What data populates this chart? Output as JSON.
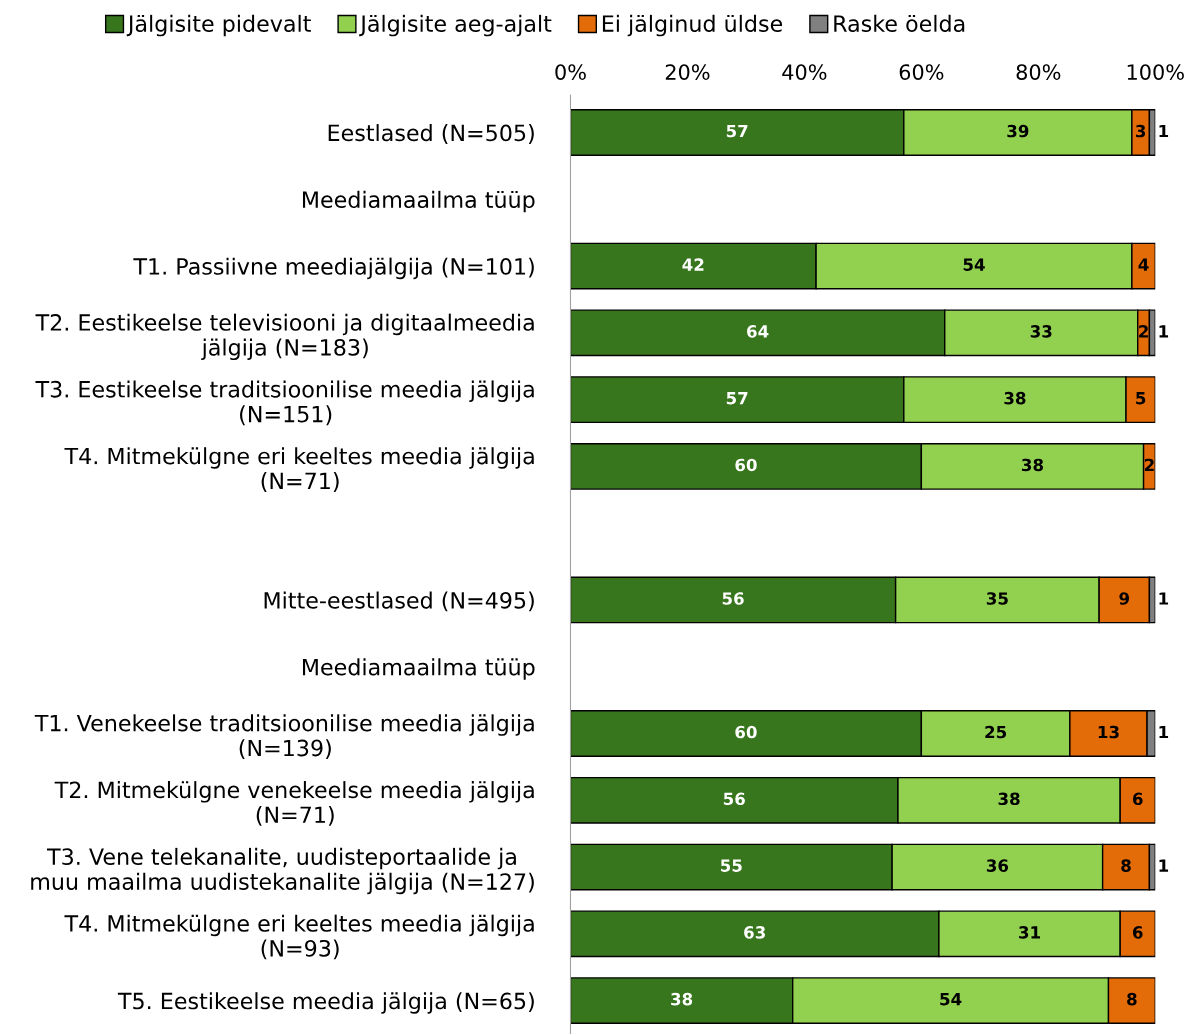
{
  "chart_data": {
    "type": "bar",
    "orientation": "horizontal",
    "stacked": true,
    "legend": "top",
    "grid": false,
    "categories": [
      "Eestlased (N=505)",
      "Meediamaailma tüüp",
      "T1. Passiivne meediajälgija (N=101)",
      "T2. Eestikeelse televisiooni ja digitaalmeedia\njälgija (N=183)",
      "T3. Eestikeelse traditsioonilise meedia jälgija\n(N=151)",
      "T4. Mitmekülgne eri keeltes meedia jälgija\n(N=71)",
      null,
      "Mitte-eestlased (N=495)",
      "Meediamaailma tüüp",
      "T1. Venekeelse traditsioonilise meedia jälgija\n(N=139)",
      "T2. Mitmekülgne venekeelse meedia jälgija\n(N=71)",
      "T3. Vene telekanalite, uudisteportaalide ja\nmuu maailma uudistekanalite jälgija (N=127)",
      "T4. Mitmekülgne eri keeltes meedia jälgija\n(N=93)",
      "T5. Eestikeelse meedia jälgija (N=65)"
    ],
    "xlim": [
      0,
      100
    ],
    "xticks": [
      {
        "value": 0,
        "label": "0%"
      },
      {
        "value": 20,
        "label": "20%"
      },
      {
        "value": 40,
        "label": "40%"
      },
      {
        "value": 60,
        "label": "60%"
      },
      {
        "value": 80,
        "label": "80%"
      },
      {
        "value": 100,
        "label": "100%"
      }
    ],
    "series": [
      {
        "name": "Jälgisite pidevalt",
        "color": "#38761d",
        "values": [
          57,
          null,
          42,
          64,
          57,
          60,
          null,
          55.6,
          null,
          60,
          56,
          55,
          63,
          38
        ],
        "value_labels": [
          "57",
          null,
          "42",
          "64",
          "57",
          "60",
          null,
          "56",
          null,
          "60",
          "56",
          "55",
          "63",
          "38"
        ]
      },
      {
        "name": "Jälgisite aeg-ajalt",
        "color": "#92d050",
        "values": [
          39,
          null,
          54,
          33,
          38,
          38,
          null,
          34.8,
          null,
          25.4,
          38,
          36,
          31,
          54
        ],
        "value_labels": [
          "39",
          null,
          "54",
          "33",
          "38",
          "38",
          null,
          "35",
          null,
          "25",
          "38",
          "36",
          "31",
          "54"
        ]
      },
      {
        "name": "Ei jälginud üldse",
        "color": "#e36c09",
        "values": [
          3,
          null,
          4,
          2,
          5,
          2,
          null,
          8.6,
          null,
          13.2,
          6,
          8,
          6,
          8
        ],
        "value_labels": [
          "3",
          null,
          "4",
          "2",
          "5",
          "2",
          null,
          "9",
          null,
          "13",
          "6",
          "8",
          "6",
          "8"
        ]
      },
      {
        "name": "Raske öelda",
        "color": "#808080",
        "values": [
          1,
          null,
          null,
          1,
          null,
          null,
          null,
          1.0,
          null,
          1.4,
          null,
          1,
          null,
          null
        ],
        "value_labels": [
          "1",
          null,
          null,
          "1",
          null,
          null,
          null,
          "1",
          null,
          "1",
          null,
          "1",
          null,
          null
        ]
      }
    ]
  }
}
